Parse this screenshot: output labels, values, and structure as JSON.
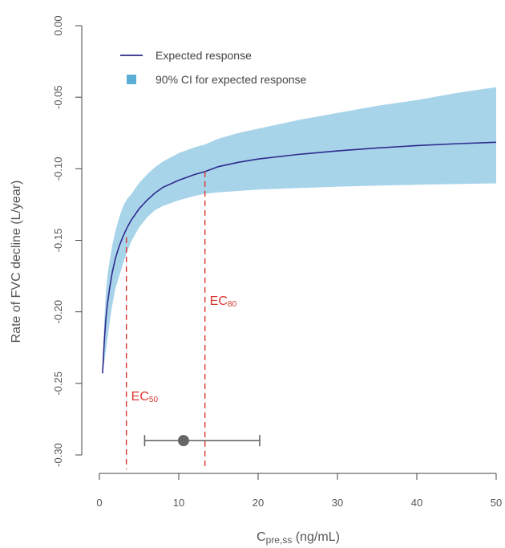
{
  "chart_data": {
    "type": "line",
    "xlabel_main": "C",
    "xlabel_sub": "pre,ss",
    "xlabel_unit": " (ng/mL)",
    "ylabel": "Rate of FVC decline (L/year)",
    "xlim": [
      0,
      50
    ],
    "ylim": [
      -0.3,
      0.0
    ],
    "xticks": [
      0,
      10,
      20,
      30,
      40,
      50
    ],
    "xtick_labels": [
      "0",
      "10",
      "20",
      "30",
      "40",
      "50"
    ],
    "yticks": [
      0.0,
      -0.05,
      -0.1,
      -0.15,
      -0.2,
      -0.25,
      -0.3
    ],
    "ytick_labels": [
      "0.00",
      "-0.05",
      "-0.10",
      "-0.15",
      "-0.20",
      "-0.25",
      "-0.30"
    ],
    "grid": false,
    "legend_position": "top-left",
    "series": [
      {
        "name": "Expected response",
        "kind": "line",
        "color": "#2e2a8c",
        "x": [
          0.4,
          0.6,
          0.8,
          1.0,
          1.3,
          1.6,
          2.0,
          2.5,
          3.0,
          3.5,
          4.0,
          5.0,
          6.0,
          7.0,
          8.0,
          10.0,
          12.0,
          13.3,
          15.0,
          17.5,
          20.0,
          25.0,
          30.0,
          35.0,
          40.0,
          45.0,
          50.0
        ],
        "y": [
          -0.243,
          -0.222,
          -0.206,
          -0.195,
          -0.183,
          -0.173,
          -0.163,
          -0.154,
          -0.147,
          -0.141,
          -0.136,
          -0.128,
          -0.122,
          -0.117,
          -0.113,
          -0.108,
          -0.104,
          -0.102,
          -0.0985,
          -0.0955,
          -0.0932,
          -0.09,
          -0.0875,
          -0.0855,
          -0.0838,
          -0.0825,
          -0.0815
        ]
      },
      {
        "name": "90% CI for expected response",
        "kind": "band",
        "color": "#a8d4ea",
        "legend_color": "#5aaed6",
        "x": [
          0.4,
          0.6,
          0.8,
          1.0,
          1.3,
          1.6,
          2.0,
          2.5,
          3.0,
          3.5,
          4.0,
          5.0,
          6.0,
          7.0,
          8.0,
          10.0,
          12.0,
          13.3,
          15.0,
          17.5,
          20.0,
          25.0,
          30.0,
          35.0,
          40.0,
          45.0,
          50.0
        ],
        "lower": [
          -0.243,
          -0.236,
          -0.228,
          -0.22,
          -0.207,
          -0.196,
          -0.184,
          -0.175,
          -0.166,
          -0.158,
          -0.151,
          -0.141,
          -0.134,
          -0.129,
          -0.126,
          -0.122,
          -0.119,
          -0.1175,
          -0.1165,
          -0.1155,
          -0.1145,
          -0.1135,
          -0.1125,
          -0.1118,
          -0.1112,
          -0.1107,
          -0.1102
        ],
        "upper": [
          -0.243,
          -0.208,
          -0.188,
          -0.175,
          -0.164,
          -0.154,
          -0.144,
          -0.134,
          -0.126,
          -0.121,
          -0.118,
          -0.11,
          -0.104,
          -0.099,
          -0.095,
          -0.089,
          -0.085,
          -0.083,
          -0.079,
          -0.075,
          -0.072,
          -0.066,
          -0.061,
          -0.056,
          -0.052,
          -0.047,
          -0.043
        ]
      }
    ],
    "vlines": [
      {
        "label_main": "EC",
        "label_sub": "50",
        "x": 3.4,
        "y_top": -0.148,
        "label_y": -0.262,
        "color": "#d7362f"
      },
      {
        "label_main": "EC",
        "label_sub": "80",
        "x": 13.3,
        "y_top": -0.102,
        "label_y": -0.195,
        "color": "#d7362f"
      }
    ],
    "interval": {
      "center": 10.6,
      "low": 5.7,
      "high": 20.2,
      "y": -0.29,
      "color": "#666666"
    }
  }
}
